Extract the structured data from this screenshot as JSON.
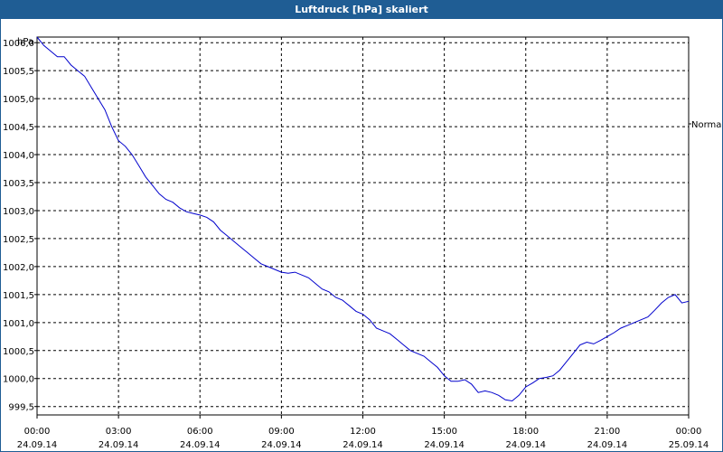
{
  "window": {
    "title": "Luftdruck [hPa] skaliert"
  },
  "chart_data": {
    "type": "line",
    "title": "Luftdruck [hPa] skaliert",
    "ylabel": "hPa",
    "xlabel": "",
    "ylim": [
      999.35,
      1006.1
    ],
    "xlim": [
      "24.09.14 00:00",
      "25.09.14 00:00"
    ],
    "grid": true,
    "y_ticks": [
      "1006,0",
      "1005,5",
      "1005,0",
      "1004,5",
      "1004,0",
      "1003,5",
      "1003,0",
      "1002,5",
      "1002,0",
      "1001,5",
      "1001,0",
      "1000,5",
      "1000,0",
      "999,5"
    ],
    "x_ticks": [
      {
        "time": "00:00",
        "date": "24.09.14"
      },
      {
        "time": "03:00",
        "date": "24.09.14"
      },
      {
        "time": "06:00",
        "date": "24.09.14"
      },
      {
        "time": "09:00",
        "date": "24.09.14"
      },
      {
        "time": "12:00",
        "date": "24.09.14"
      },
      {
        "time": "15:00",
        "date": "24.09.14"
      },
      {
        "time": "18:00",
        "date": "24.09.14"
      },
      {
        "time": "21:00",
        "date": "24.09.14"
      },
      {
        "time": "00:00",
        "date": "25.09.14"
      }
    ],
    "reference": {
      "label": "Normal",
      "value": 1004.55
    },
    "series": [
      {
        "color": "#0000cc",
        "points": [
          [
            "24.09.14 00:00",
            1006.1
          ],
          [
            "24.09.14 00:15",
            1005.95
          ],
          [
            "24.09.14 00:30",
            1005.85
          ],
          [
            "24.09.14 00:45",
            1005.75
          ],
          [
            "24.09.14 01:00",
            1005.75
          ],
          [
            "24.09.14 01:15",
            1005.6
          ],
          [
            "24.09.14 01:30",
            1005.5
          ],
          [
            "24.09.14 01:45",
            1005.4
          ],
          [
            "24.09.14 02:00",
            1005.2
          ],
          [
            "24.09.14 02:15",
            1005.0
          ],
          [
            "24.09.14 02:30",
            1004.8
          ],
          [
            "24.09.14 02:45",
            1004.5
          ],
          [
            "24.09.14 03:00",
            1004.25
          ],
          [
            "24.09.14 03:15",
            1004.15
          ],
          [
            "24.09.14 03:30",
            1004.0
          ],
          [
            "24.09.14 03:45",
            1003.8
          ],
          [
            "24.09.14 04:00",
            1003.6
          ],
          [
            "24.09.14 04:15",
            1003.45
          ],
          [
            "24.09.14 04:30",
            1003.3
          ],
          [
            "24.09.14 04:45",
            1003.2
          ],
          [
            "24.09.14 05:00",
            1003.15
          ],
          [
            "24.09.14 05:15",
            1003.05
          ],
          [
            "24.09.14 05:30",
            1002.98
          ],
          [
            "24.09.14 05:45",
            1002.95
          ],
          [
            "24.09.14 06:00",
            1002.92
          ],
          [
            "24.09.14 06:15",
            1002.88
          ],
          [
            "24.09.14 06:30",
            1002.8
          ],
          [
            "24.09.14 06:45",
            1002.65
          ],
          [
            "24.09.14 07:00",
            1002.55
          ],
          [
            "24.09.14 07:15",
            1002.45
          ],
          [
            "24.09.14 07:30",
            1002.35
          ],
          [
            "24.09.14 07:45",
            1002.25
          ],
          [
            "24.09.14 08:00",
            1002.15
          ],
          [
            "24.09.14 08:15",
            1002.05
          ],
          [
            "24.09.14 08:30",
            1002.0
          ],
          [
            "24.09.14 08:45",
            1001.95
          ],
          [
            "24.09.14 09:00",
            1001.9
          ],
          [
            "24.09.14 09:15",
            1001.88
          ],
          [
            "24.09.14 09:30",
            1001.9
          ],
          [
            "24.09.14 09:45",
            1001.85
          ],
          [
            "24.09.14 10:00",
            1001.8
          ],
          [
            "24.09.14 10:15",
            1001.7
          ],
          [
            "24.09.14 10:30",
            1001.6
          ],
          [
            "24.09.14 10:45",
            1001.55
          ],
          [
            "24.09.14 11:00",
            1001.45
          ],
          [
            "24.09.14 11:15",
            1001.4
          ],
          [
            "24.09.14 11:30",
            1001.3
          ],
          [
            "24.09.14 11:45",
            1001.2
          ],
          [
            "24.09.14 12:00",
            1001.15
          ],
          [
            "24.09.14 12:15",
            1001.05
          ],
          [
            "24.09.14 12:30",
            1000.9
          ],
          [
            "24.09.14 12:45",
            1000.85
          ],
          [
            "24.09.14 13:00",
            1000.8
          ],
          [
            "24.09.14 13:15",
            1000.7
          ],
          [
            "24.09.14 13:30",
            1000.6
          ],
          [
            "24.09.14 13:45",
            1000.5
          ],
          [
            "24.09.14 14:00",
            1000.45
          ],
          [
            "24.09.14 14:15",
            1000.4
          ],
          [
            "24.09.14 14:30",
            1000.3
          ],
          [
            "24.09.14 14:45",
            1000.2
          ],
          [
            "24.09.14 15:00",
            1000.05
          ],
          [
            "24.09.14 15:15",
            999.95
          ],
          [
            "24.09.14 15:30",
            999.95
          ],
          [
            "24.09.14 15:45",
            999.98
          ],
          [
            "24.09.14 16:00",
            999.9
          ],
          [
            "24.09.14 16:15",
            999.75
          ],
          [
            "24.09.14 16:30",
            999.78
          ],
          [
            "24.09.14 16:45",
            999.75
          ],
          [
            "24.09.14 17:00",
            999.7
          ],
          [
            "24.09.14 17:15",
            999.62
          ],
          [
            "24.09.14 17:30",
            999.6
          ],
          [
            "24.09.14 17:45",
            999.7
          ],
          [
            "24.09.14 18:00",
            999.85
          ],
          [
            "24.09.14 18:15",
            999.92
          ],
          [
            "24.09.14 18:30",
            1000.0
          ],
          [
            "24.09.14 18:45",
            1000.02
          ],
          [
            "24.09.14 19:00",
            1000.05
          ],
          [
            "24.09.14 19:15",
            1000.15
          ],
          [
            "24.09.14 19:30",
            1000.3
          ],
          [
            "24.09.14 19:45",
            1000.45
          ],
          [
            "24.09.14 20:00",
            1000.6
          ],
          [
            "24.09.14 20:15",
            1000.65
          ],
          [
            "24.09.14 20:30",
            1000.62
          ],
          [
            "24.09.14 20:45",
            1000.68
          ],
          [
            "24.09.14 21:00",
            1000.75
          ],
          [
            "24.09.14 21:15",
            1000.82
          ],
          [
            "24.09.14 21:30",
            1000.9
          ],
          [
            "24.09.14 21:45",
            1000.95
          ],
          [
            "24.09.14 22:00",
            1001.0
          ],
          [
            "24.09.14 22:15",
            1001.05
          ],
          [
            "24.09.14 22:30",
            1001.1
          ],
          [
            "24.09.14 22:45",
            1001.22
          ],
          [
            "24.09.14 23:00",
            1001.35
          ],
          [
            "24.09.14 23:15",
            1001.45
          ],
          [
            "24.09.14 23:30",
            1001.5
          ],
          [
            "24.09.14 23:45",
            1001.35
          ],
          [
            "25.09.14 00:00",
            1001.38
          ]
        ]
      }
    ]
  }
}
